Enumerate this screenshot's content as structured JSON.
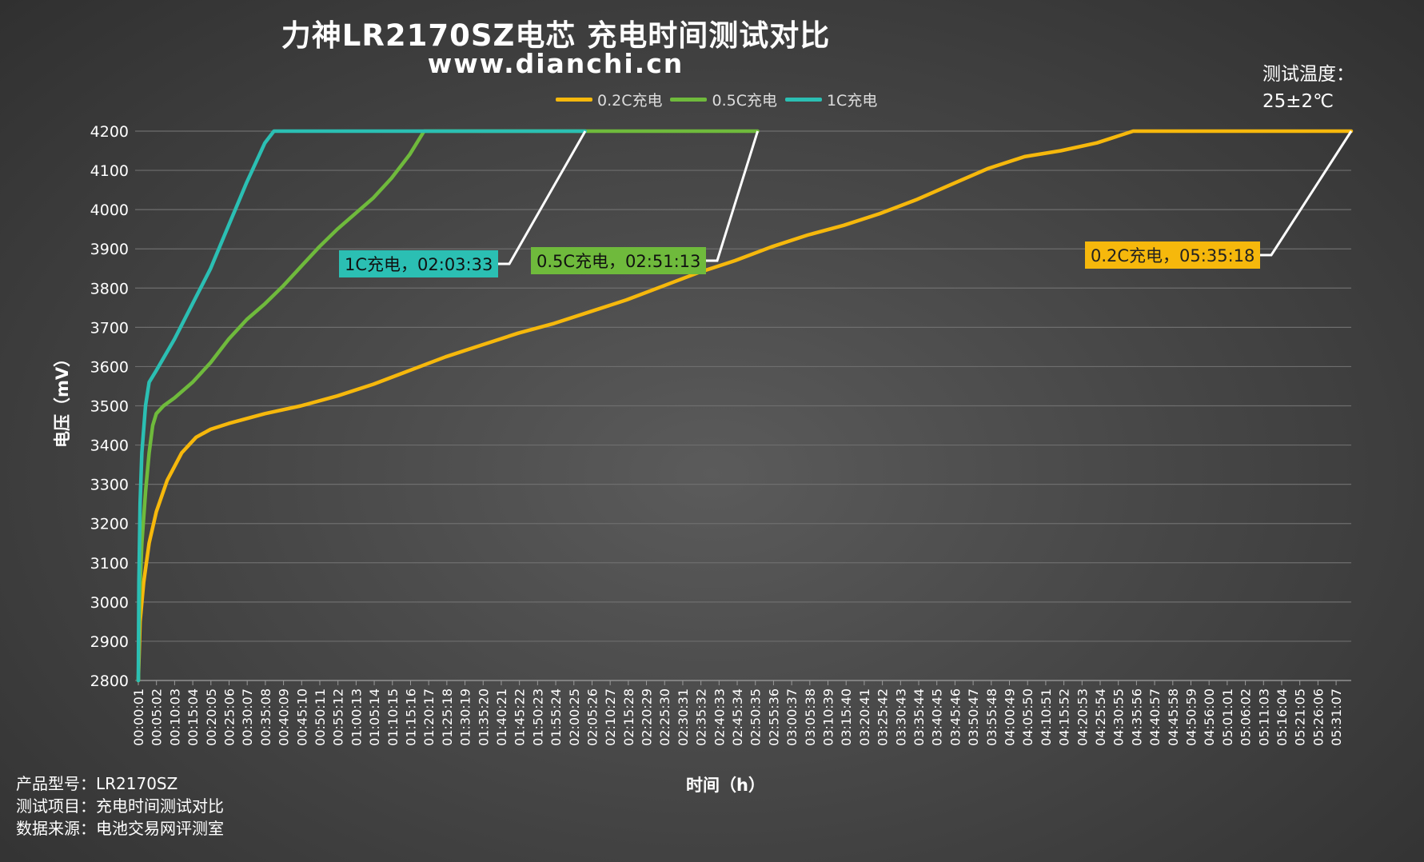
{
  "title": "力神LR2170SZ电芯 充电时间测试对比",
  "subtitle": "www.dianchi.cn",
  "temperature": {
    "line1": "测试温度：",
    "line2": "25±2℃"
  },
  "footer": {
    "model": "产品型号：LR2170SZ",
    "item": "测试项目：充电时间测试对比",
    "source": "数据来源：电池交易网评测室"
  },
  "chart_data": {
    "type": "line",
    "title": "力神LR2170SZ电芯 充电时间测试对比",
    "xlabel": "时间（h）",
    "ylabel": "电压（mV）",
    "ylim": [
      2800,
      4200
    ],
    "xlim": [
      "00:00:01",
      "05:35:18"
    ],
    "grid": true,
    "legend_position": "top",
    "yticks": [
      2800,
      2900,
      3000,
      3100,
      3200,
      3300,
      3400,
      3500,
      3600,
      3700,
      3800,
      3900,
      4000,
      4100,
      4200
    ],
    "xticks": [
      "00:00:01",
      "00:05:02",
      "00:10:03",
      "00:15:04",
      "00:20:05",
      "00:25:06",
      "00:30:07",
      "00:35:08",
      "00:40:09",
      "00:45:10",
      "00:50:11",
      "00:55:12",
      "01:00:13",
      "01:05:14",
      "01:10:15",
      "01:15:16",
      "01:20:17",
      "01:25:18",
      "01:30:19",
      "01:35:20",
      "01:40:21",
      "01:45:22",
      "01:50:23",
      "01:55:24",
      "02:00:25",
      "02:05:26",
      "02:10:27",
      "02:15:28",
      "02:20:29",
      "02:25:30",
      "02:30:31",
      "02:35:32",
      "02:40:33",
      "02:45:34",
      "02:50:35",
      "02:55:36",
      "03:00:37",
      "03:05:38",
      "03:10:39",
      "03:15:40",
      "03:20:41",
      "03:25:42",
      "03:30:43",
      "03:35:44",
      "03:40:45",
      "03:45:46",
      "03:50:47",
      "03:55:48",
      "04:00:49",
      "04:05:50",
      "04:10:51",
      "04:15:52",
      "04:20:53",
      "04:25:54",
      "04:30:55",
      "04:35:56",
      "04:40:57",
      "04:45:58",
      "04:50:59",
      "04:56:00",
      "05:01:01",
      "05:06:02",
      "05:11:03",
      "05:16:04",
      "05:21:05",
      "05:26:06",
      "05:31:07"
    ],
    "series": [
      {
        "name": "0.2C充电",
        "color": "#f6b80c",
        "end_label": "0.2C充电，05:35:18",
        "points": [
          [
            "00:00:01",
            2800
          ],
          [
            "00:00:30",
            2950
          ],
          [
            "00:01:30",
            3050
          ],
          [
            "00:03:00",
            3150
          ],
          [
            "00:05:00",
            3230
          ],
          [
            "00:08:00",
            3310
          ],
          [
            "00:12:00",
            3380
          ],
          [
            "00:16:00",
            3420
          ],
          [
            "00:20:00",
            3440
          ],
          [
            "00:25:00",
            3455
          ],
          [
            "00:35:00",
            3480
          ],
          [
            "00:45:00",
            3500
          ],
          [
            "00:55:00",
            3525
          ],
          [
            "01:05:00",
            3555
          ],
          [
            "01:15:00",
            3590
          ],
          [
            "01:25:00",
            3625
          ],
          [
            "01:35:00",
            3655
          ],
          [
            "01:45:00",
            3685
          ],
          [
            "01:55:00",
            3710
          ],
          [
            "02:05:00",
            3740
          ],
          [
            "02:15:00",
            3770
          ],
          [
            "02:25:00",
            3805
          ],
          [
            "02:35:00",
            3840
          ],
          [
            "02:45:00",
            3870
          ],
          [
            "02:55:00",
            3905
          ],
          [
            "03:05:00",
            3935
          ],
          [
            "03:15:00",
            3960
          ],
          [
            "03:25:00",
            3990
          ],
          [
            "03:35:00",
            4025
          ],
          [
            "03:45:00",
            4065
          ],
          [
            "03:55:00",
            4105
          ],
          [
            "04:05:00",
            4135
          ],
          [
            "04:15:00",
            4150
          ],
          [
            "04:25:00",
            4170
          ],
          [
            "04:35:00",
            4200
          ],
          [
            "05:35:18",
            4200
          ]
        ]
      },
      {
        "name": "0.5C充电",
        "color": "#6fba3c",
        "end_label": "0.5C充电，02:51:13",
        "points": [
          [
            "00:00:01",
            2800
          ],
          [
            "00:00:20",
            3000
          ],
          [
            "00:01:00",
            3150
          ],
          [
            "00:02:00",
            3280
          ],
          [
            "00:03:00",
            3380
          ],
          [
            "00:04:00",
            3450
          ],
          [
            "00:05:00",
            3480
          ],
          [
            "00:07:00",
            3500
          ],
          [
            "00:10:00",
            3520
          ],
          [
            "00:15:00",
            3560
          ],
          [
            "00:20:00",
            3610
          ],
          [
            "00:25:00",
            3670
          ],
          [
            "00:30:00",
            3720
          ],
          [
            "00:35:00",
            3760
          ],
          [
            "00:40:00",
            3805
          ],
          [
            "00:45:00",
            3855
          ],
          [
            "00:50:00",
            3905
          ],
          [
            "00:55:00",
            3950
          ],
          [
            "01:00:00",
            3990
          ],
          [
            "01:05:00",
            4030
          ],
          [
            "01:10:00",
            4080
          ],
          [
            "01:15:00",
            4140
          ],
          [
            "01:19:00",
            4200
          ],
          [
            "02:51:13",
            4200
          ]
        ]
      },
      {
        "name": "1C充电",
        "color": "#2bbfb3",
        "end_label": "1C充电，02:03:33",
        "points": [
          [
            "00:00:01",
            2800
          ],
          [
            "00:00:10",
            3050
          ],
          [
            "00:00:30",
            3250
          ],
          [
            "00:01:00",
            3380
          ],
          [
            "00:02:00",
            3500
          ],
          [
            "00:03:00",
            3560
          ],
          [
            "00:05:00",
            3590
          ],
          [
            "00:10:00",
            3670
          ],
          [
            "00:15:00",
            3760
          ],
          [
            "00:20:00",
            3850
          ],
          [
            "00:25:00",
            3960
          ],
          [
            "00:30:00",
            4070
          ],
          [
            "00:35:00",
            4170
          ],
          [
            "00:37:30",
            4200
          ],
          [
            "02:03:33",
            4200
          ]
        ]
      }
    ]
  }
}
